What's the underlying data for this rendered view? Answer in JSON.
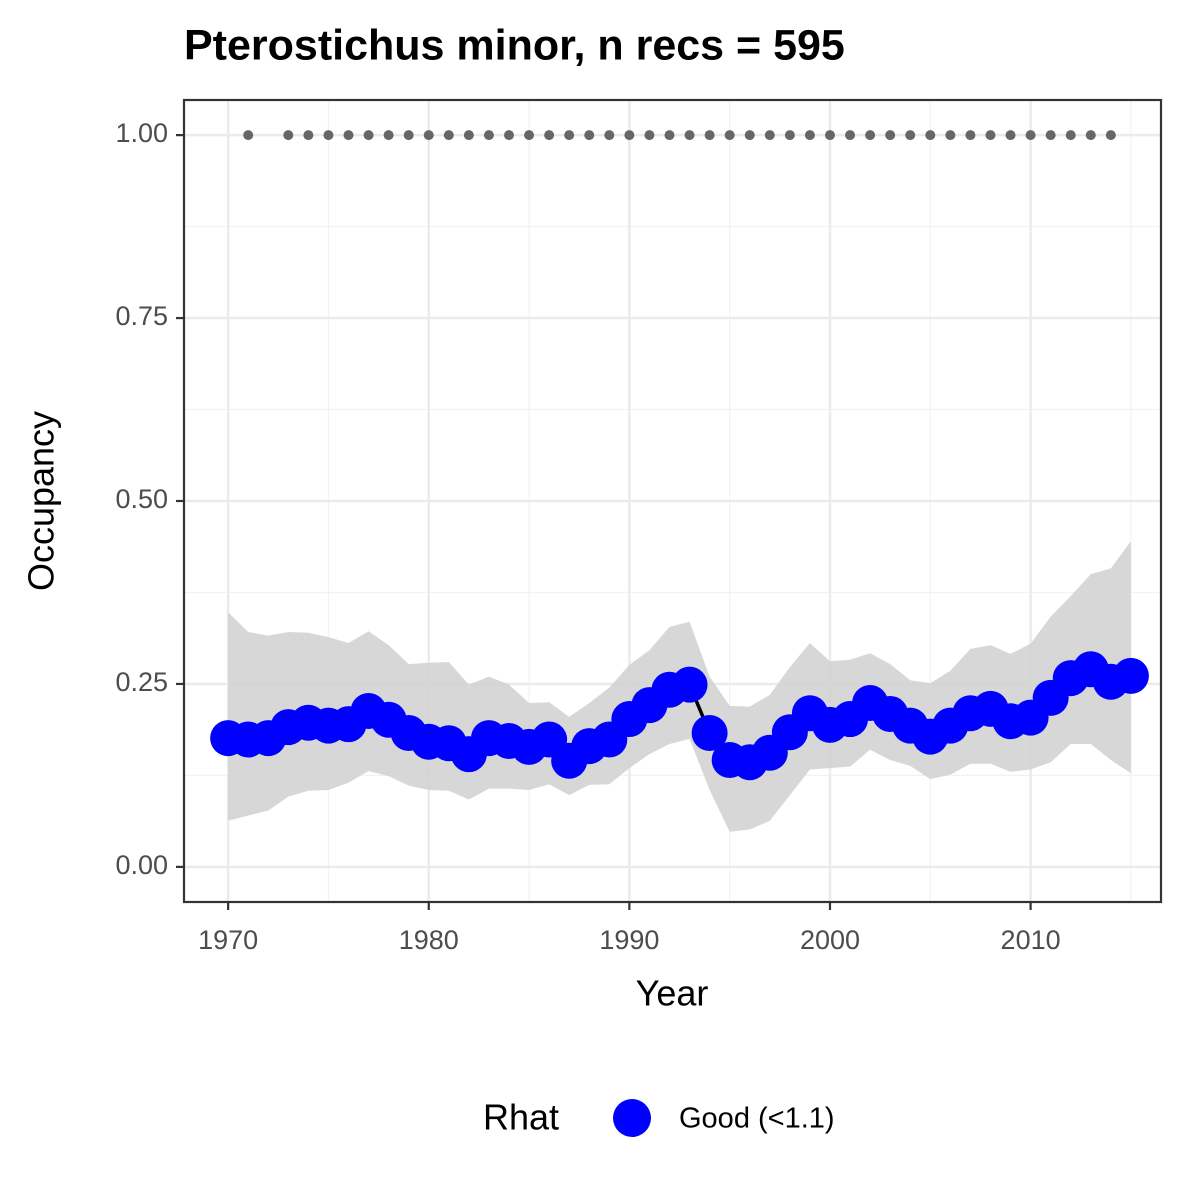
{
  "chart_data": {
    "type": "line",
    "title": "Pterostichus minor, n recs = 595",
    "x_label": "Year",
    "y_label": "Occupancy",
    "legend_title": "Rhat",
    "x": [
      1970,
      1971,
      1972,
      1973,
      1974,
      1975,
      1976,
      1977,
      1978,
      1979,
      1980,
      1981,
      1982,
      1983,
      1984,
      1985,
      1986,
      1987,
      1988,
      1989,
      1990,
      1991,
      1992,
      1993,
      1994,
      1995,
      1996,
      1997,
      1998,
      1999,
      2000,
      2001,
      2002,
      2003,
      2004,
      2005,
      2006,
      2007,
      2008,
      2009,
      2010,
      2011,
      2012,
      2013,
      2014,
      2015
    ],
    "series": [
      {
        "name": "Good (<1.1)",
        "color": "#0000ff",
        "line_color": "#000000",
        "values": [
          0.176,
          0.174,
          0.176,
          0.191,
          0.197,
          0.193,
          0.195,
          0.213,
          0.201,
          0.183,
          0.171,
          0.169,
          0.154,
          0.176,
          0.172,
          0.164,
          0.174,
          0.145,
          0.165,
          0.174,
          0.202,
          0.221,
          0.242,
          0.249,
          0.183,
          0.146,
          0.143,
          0.156,
          0.184,
          0.21,
          0.194,
          0.202,
          0.224,
          0.209,
          0.193,
          0.178,
          0.193,
          0.21,
          0.216,
          0.199,
          0.204,
          0.231,
          0.258,
          0.27,
          0.253,
          0.261
        ]
      }
    ],
    "band": {
      "color": "#d3d3d3",
      "lower": [
        0.063,
        0.07,
        0.077,
        0.096,
        0.104,
        0.105,
        0.115,
        0.131,
        0.124,
        0.111,
        0.105,
        0.104,
        0.092,
        0.107,
        0.107,
        0.105,
        0.113,
        0.098,
        0.112,
        0.113,
        0.135,
        0.154,
        0.168,
        0.175,
        0.105,
        0.048,
        0.051,
        0.063,
        0.098,
        0.133,
        0.135,
        0.137,
        0.16,
        0.146,
        0.138,
        0.12,
        0.126,
        0.141,
        0.141,
        0.13,
        0.133,
        0.143,
        0.168,
        0.168,
        0.146,
        0.128
      ],
      "upper": [
        0.348,
        0.321,
        0.316,
        0.321,
        0.32,
        0.314,
        0.306,
        0.322,
        0.303,
        0.277,
        0.279,
        0.28,
        0.249,
        0.26,
        0.249,
        0.224,
        0.225,
        0.205,
        0.224,
        0.245,
        0.276,
        0.296,
        0.328,
        0.335,
        0.26,
        0.22,
        0.219,
        0.235,
        0.273,
        0.306,
        0.281,
        0.283,
        0.292,
        0.277,
        0.255,
        0.251,
        0.268,
        0.298,
        0.303,
        0.291,
        0.305,
        0.342,
        0.37,
        0.4,
        0.408,
        0.445
      ]
    },
    "records": {
      "color": "#666666",
      "x": [
        1971,
        1973,
        1974,
        1975,
        1976,
        1977,
        1978,
        1979,
        1980,
        1981,
        1982,
        1983,
        1984,
        1985,
        1986,
        1987,
        1988,
        1989,
        1990,
        1991,
        1992,
        1993,
        1994,
        1995,
        1996,
        1997,
        1998,
        1999,
        2000,
        2001,
        2002,
        2003,
        2004,
        2005,
        2006,
        2007,
        2008,
        2009,
        2010,
        2011,
        2012,
        2013,
        2014
      ],
      "values": [
        1,
        1,
        1,
        1,
        1,
        1,
        1,
        1,
        1,
        1,
        1,
        1,
        1,
        1,
        1,
        1,
        1,
        1,
        1,
        1,
        1,
        1,
        1,
        1,
        1,
        1,
        1,
        1,
        1,
        1,
        1,
        1,
        1,
        1,
        1,
        1,
        1,
        1,
        1,
        1,
        1,
        1,
        1
      ]
    },
    "xlim": [
      1967.8,
      2016.5
    ],
    "ylim": [
      -0.048,
      1.048
    ],
    "xticks": [
      1970,
      1980,
      1990,
      2000,
      2010
    ],
    "yticks": [
      {
        "value": 0,
        "label": "0.00"
      },
      {
        "value": 0.25,
        "label": "0.25"
      },
      {
        "value": 0.5,
        "label": "0.50"
      },
      {
        "value": 0.75,
        "label": "0.75"
      },
      {
        "value": 1,
        "label": "1.00"
      }
    ],
    "xminor": [
      1975,
      1985,
      1995,
      2005,
      2015
    ],
    "yminor": [
      0.125,
      0.375,
      0.625,
      0.875
    ],
    "grid": true
  }
}
